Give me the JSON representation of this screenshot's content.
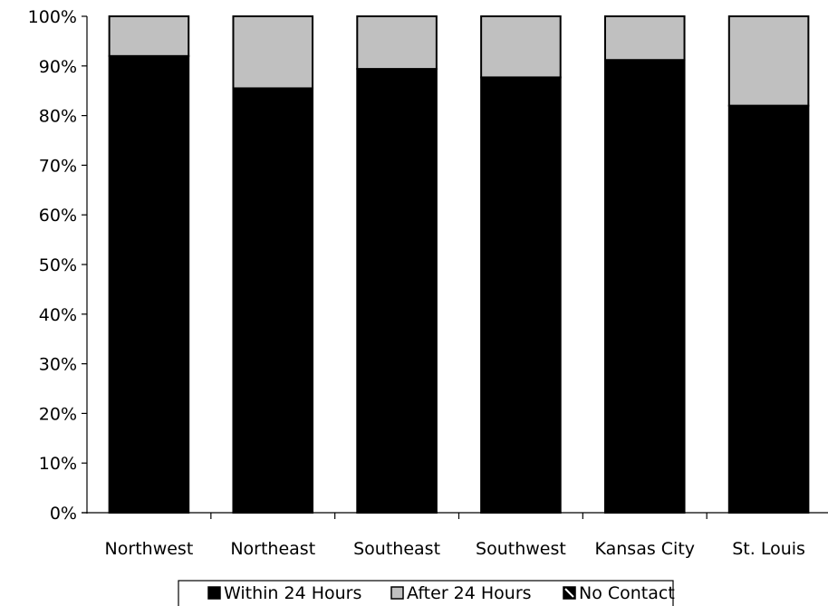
{
  "chart_data": {
    "type": "bar",
    "stacked": true,
    "normalized": true,
    "title": "",
    "xlabel": "",
    "ylabel": "",
    "categories": [
      "Northwest",
      "Northeast",
      "Southeast",
      "Southwest",
      "Kansas City",
      "St. Louis"
    ],
    "series": [
      {
        "name": "Within 24 Hours",
        "color": "#000000",
        "values": [
          92,
          85.5,
          89.4,
          87.7,
          91.2,
          82
        ]
      },
      {
        "name": "After 24 Hours",
        "color": "#c0c0c0",
        "values": [
          8,
          14.5,
          10.6,
          12.3,
          8.8,
          18
        ]
      },
      {
        "name": "No Contact",
        "color": "#000000",
        "values": [
          0,
          0,
          0,
          0,
          0,
          0
        ]
      }
    ],
    "ylim": [
      0,
      100
    ],
    "yticks": [
      0,
      10,
      20,
      30,
      40,
      50,
      60,
      70,
      80,
      90,
      100
    ],
    "ytick_labels": [
      "0%",
      "10%",
      "20%",
      "30%",
      "40%",
      "50%",
      "60%",
      "70%",
      "80%",
      "90%",
      "100%"
    ],
    "grid": false,
    "legend_position": "bottom"
  }
}
